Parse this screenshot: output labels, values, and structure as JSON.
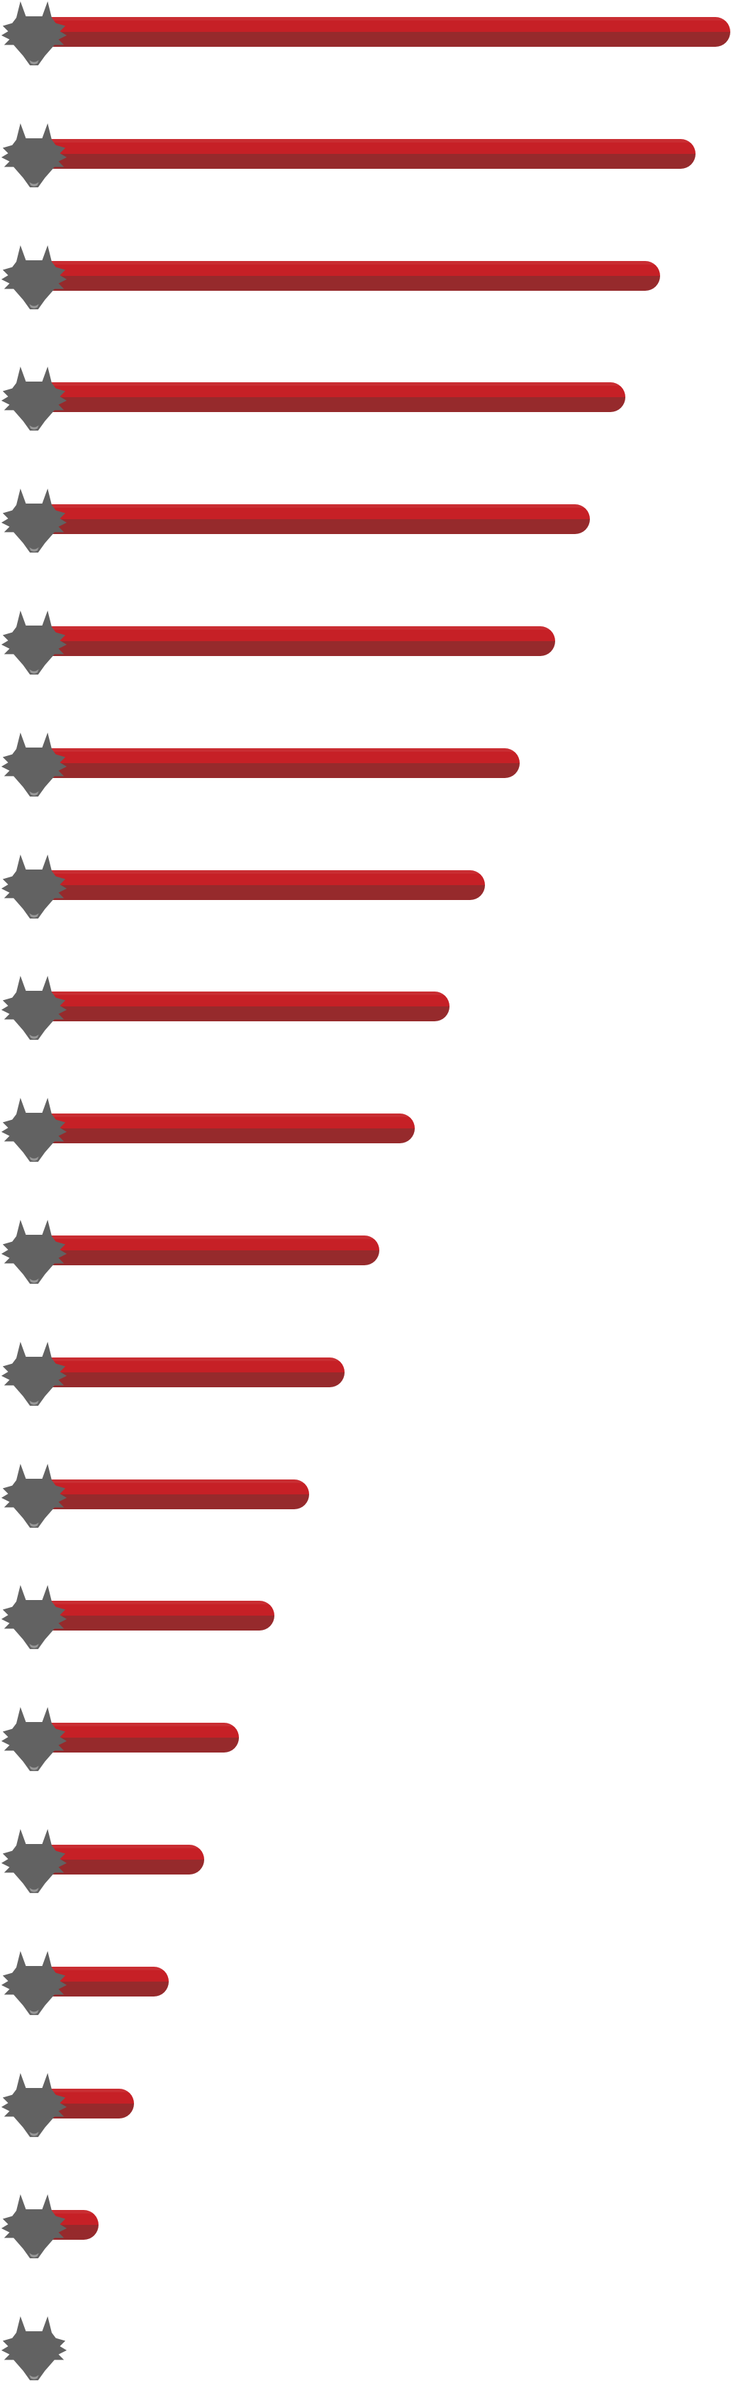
{
  "colors": {
    "bar_top": "#c62026",
    "bar_bottom": "#962a2c",
    "icon": "#626262",
    "background": "#ffffff"
  },
  "icon": "wolf-head-icon",
  "rows": [
    {
      "level": 1.0
    },
    {
      "level": 0.95
    },
    {
      "level": 0.9
    },
    {
      "level": 0.85
    },
    {
      "level": 0.8
    },
    {
      "level": 0.75
    },
    {
      "level": 0.7
    },
    {
      "level": 0.65
    },
    {
      "level": 0.6
    },
    {
      "level": 0.55
    },
    {
      "level": 0.5
    },
    {
      "level": 0.45
    },
    {
      "level": 0.4
    },
    {
      "level": 0.35
    },
    {
      "level": 0.3
    },
    {
      "level": 0.25
    },
    {
      "level": 0.2
    },
    {
      "level": 0.15
    },
    {
      "level": 0.1
    },
    {
      "level": 0.0
    }
  ]
}
